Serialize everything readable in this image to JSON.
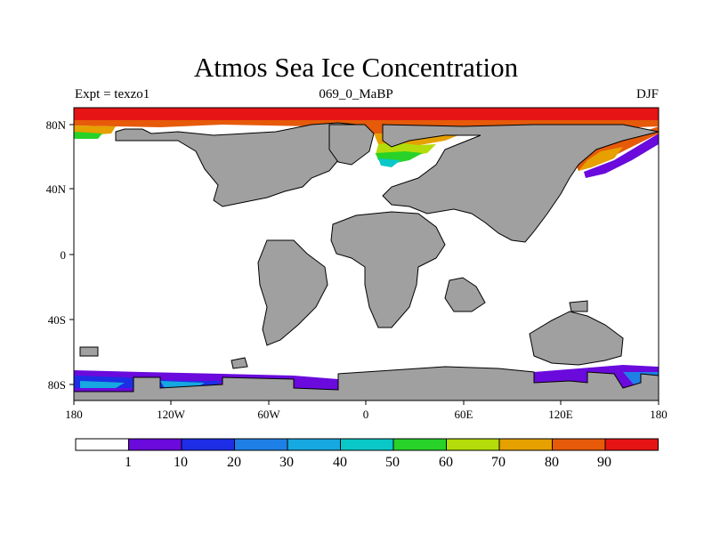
{
  "title": "Atmos Sea Ice Concentration",
  "subtitle_left": "Expt = texzo1",
  "subtitle_center": "069_0_MaBP",
  "subtitle_right": "DJF",
  "x_ticks": [
    "180",
    "120W",
    "60W",
    "0",
    "60E",
    "120E",
    "180"
  ],
  "y_ticks": [
    "80N",
    "40N",
    "0",
    "40S",
    "80S"
  ],
  "colorbar": {
    "labels": [
      "1",
      "10",
      "20",
      "30",
      "40",
      "50",
      "60",
      "70",
      "80",
      "90"
    ],
    "colors": [
      "#ffffff",
      "#6a0adc",
      "#1e2ee6",
      "#1e80e6",
      "#16a8e0",
      "#0ac8c8",
      "#28d228",
      "#b4dc0a",
      "#e6a000",
      "#e65a0a",
      "#e61414"
    ]
  },
  "land_color": "#a0a0a0"
}
